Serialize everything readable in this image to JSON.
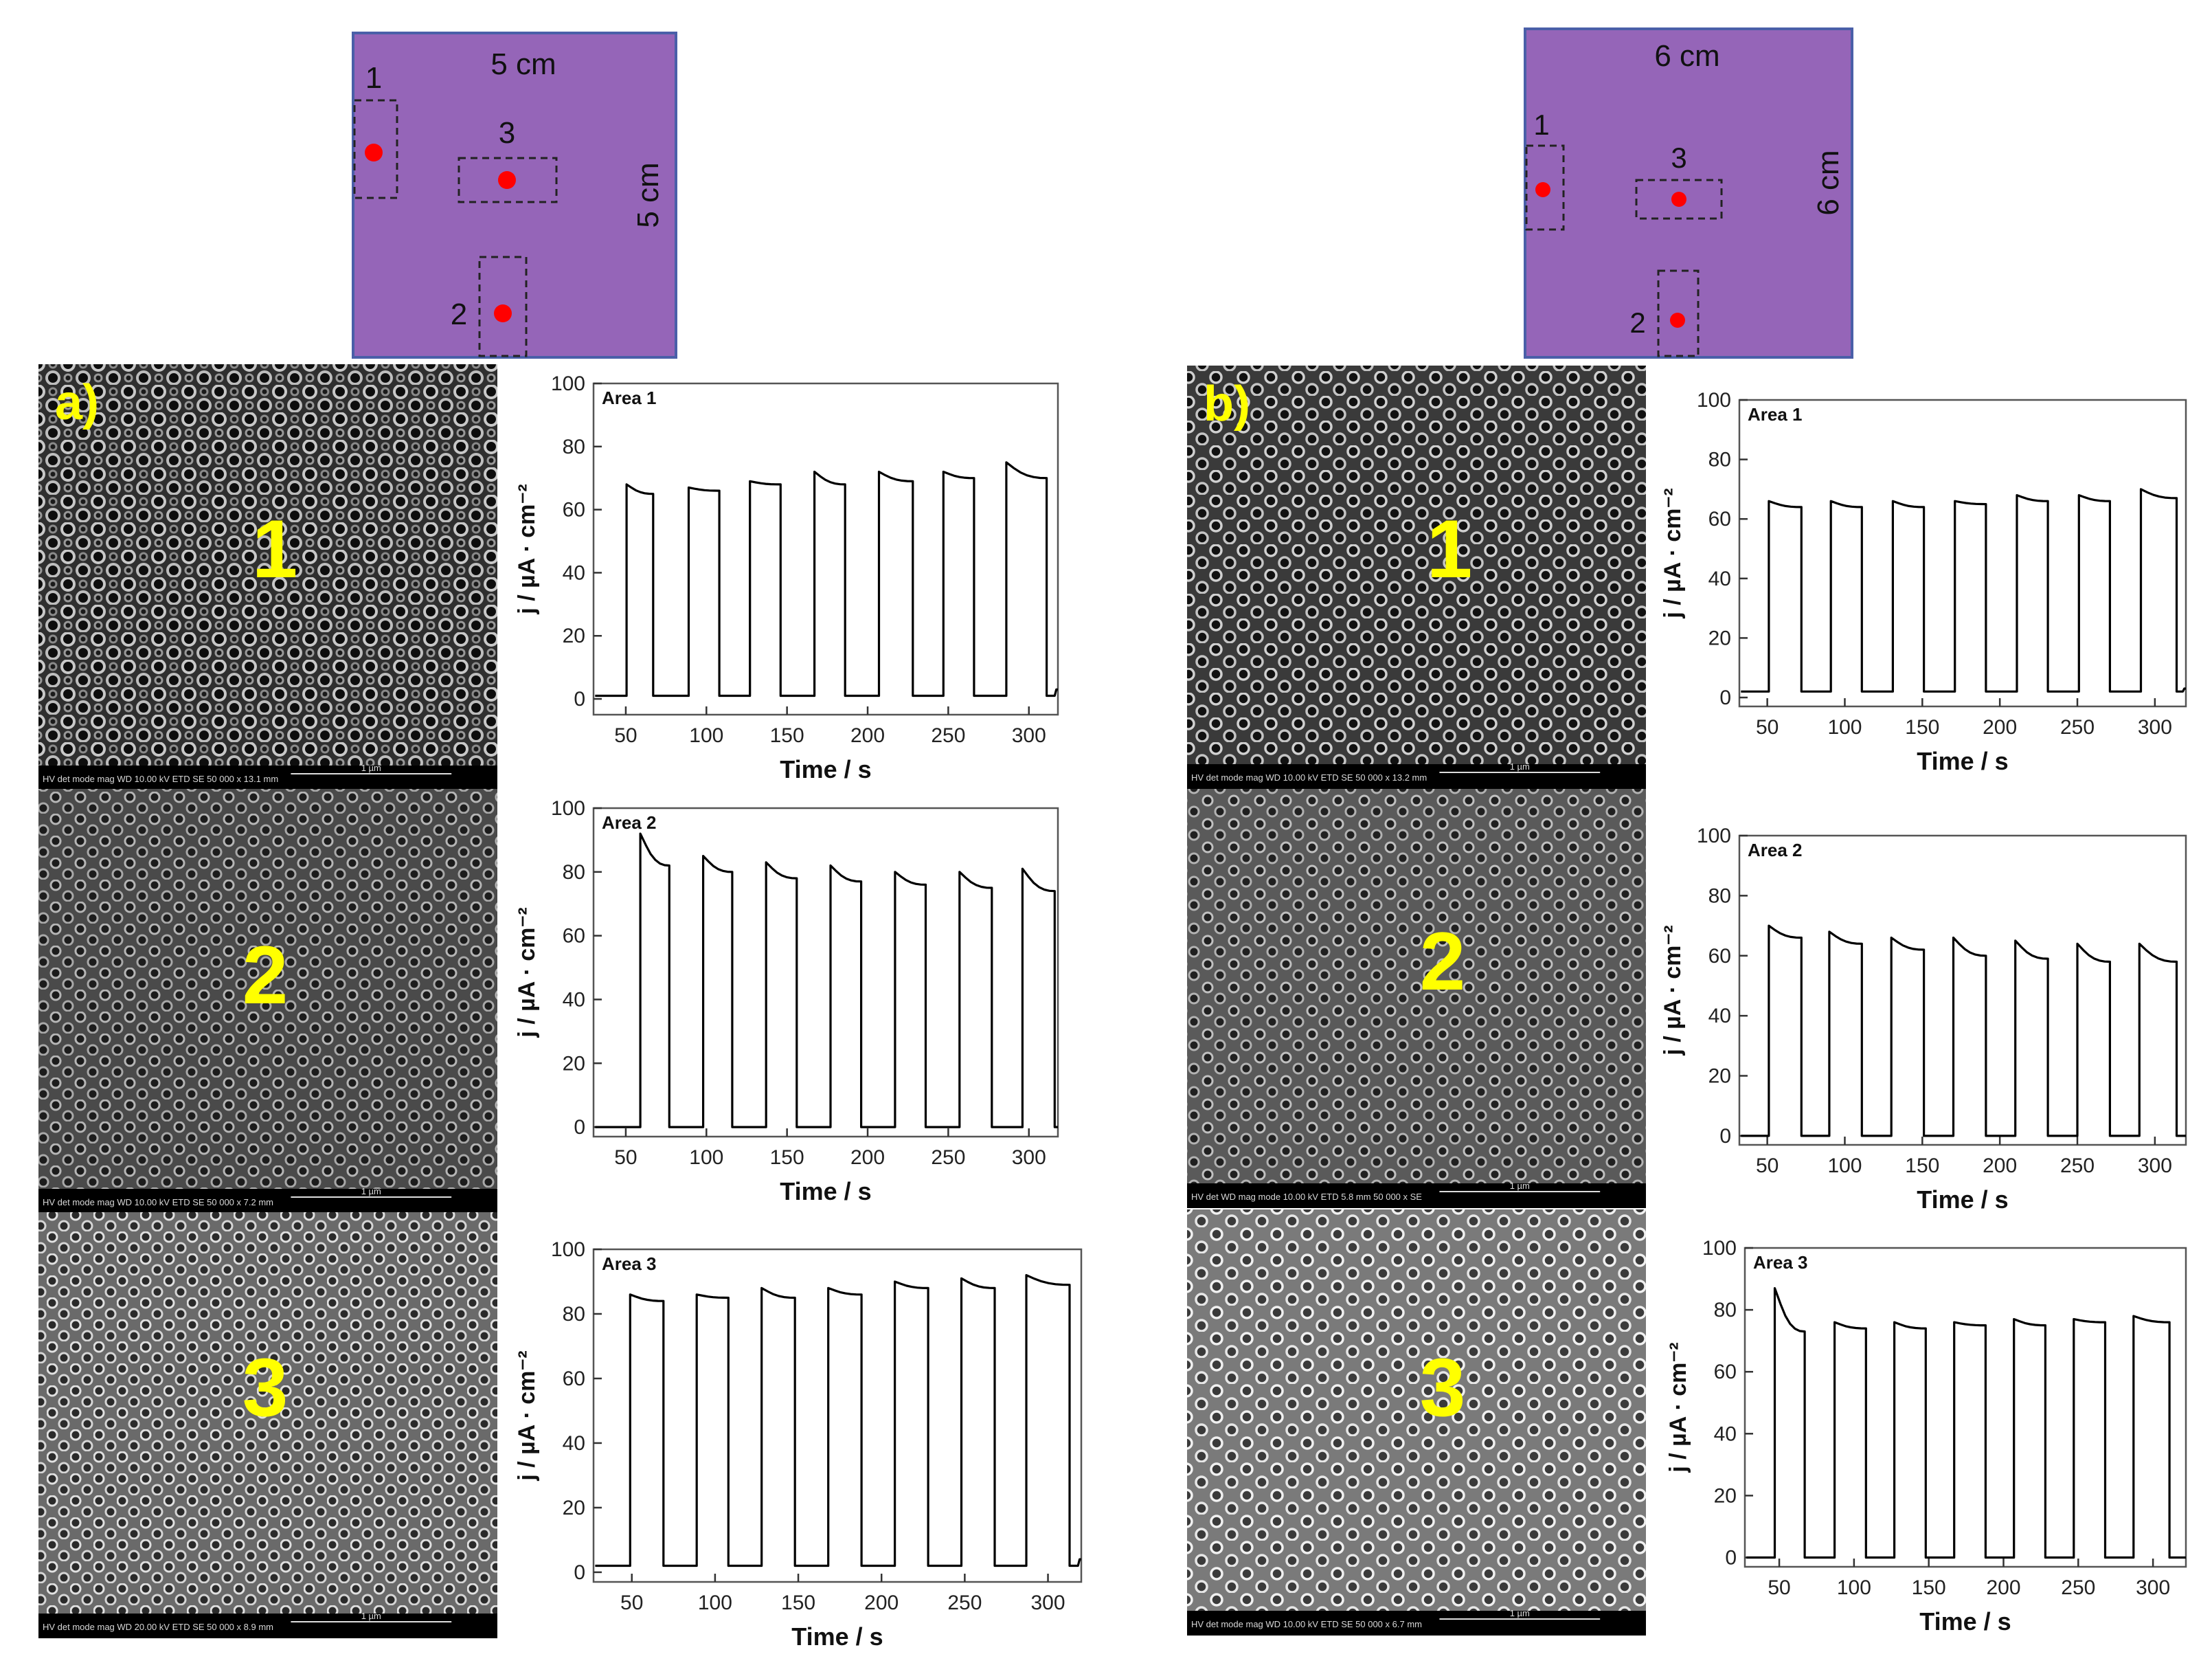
{
  "diagrams": [
    {
      "panel": "a",
      "width_label": "5 cm",
      "height_label": "5 cm",
      "area_labels": [
        "1",
        "2",
        "3"
      ]
    },
    {
      "panel": "b",
      "width_label": "6 cm",
      "height_label": "6 cm",
      "area_labels": [
        "1",
        "2",
        "3"
      ]
    }
  ],
  "sem_panels": [
    {
      "panel_label": "a)",
      "area_label": "1",
      "scale_label": "1 µm",
      "info_text": "HV det mode mag WD 10.00 kV ETD SE 50 000 x 13.1 mm"
    },
    {
      "panel_label": "",
      "area_label": "2",
      "scale_label": "1 µm",
      "info_text": "HV det mode mag WD 10.00 kV ETD SE 50 000 x 7.2 mm"
    },
    {
      "panel_label": "",
      "area_label": "3",
      "scale_label": "1 µm",
      "info_text": "HV det mode mag WD 20.00 kV ETD SE 50 000 x 8.9 mm"
    },
    {
      "panel_label": "b)",
      "area_label": "1",
      "scale_label": "1 µm",
      "info_text": "HV det mode mag WD 10.00 kV ETD SE 50 000 x 13.2 mm"
    },
    {
      "panel_label": "",
      "area_label": "2",
      "scale_label": "1 µm",
      "info_text": "HV det WD mag mode 10.00 kV ETD 5.8 mm 50 000 x SE"
    },
    {
      "panel_label": "",
      "area_label": "3",
      "scale_label": "1 µm",
      "info_text": "HV det mode mag WD 10.00 kV ETD SE 50 000 x 6.7 mm"
    }
  ],
  "colors": {
    "diagram_fill": "#9565b8",
    "diagram_border": "#4a5fa8",
    "marker": "#ff0000",
    "sem_label": "#ffff00",
    "trace": "#000000"
  },
  "chart_data": [
    {
      "type": "line",
      "panel": "a",
      "title": "Area 1",
      "xlabel": "Time / s",
      "ylabel": "j / µA · cm⁻²",
      "xlim": [
        30,
        318
      ],
      "ylim": [
        -5,
        100
      ],
      "xticks": [
        50,
        100,
        150,
        200,
        250,
        300
      ],
      "yticks": [
        0,
        20,
        40,
        60,
        80,
        100
      ],
      "dark_current": 1,
      "pulses": [
        {
          "on": 50.5,
          "off": 67,
          "start": 68,
          "end": 65
        },
        {
          "on": 89,
          "off": 108,
          "start": 67,
          "end": 66
        },
        {
          "on": 127,
          "off": 146,
          "start": 69,
          "end": 68
        },
        {
          "on": 167,
          "off": 186,
          "start": 72,
          "end": 68
        },
        {
          "on": 207,
          "off": 228,
          "start": 72,
          "end": 69
        },
        {
          "on": 247,
          "off": 266,
          "start": 72,
          "end": 70
        },
        {
          "on": 286,
          "off": 311,
          "start": 75,
          "end": 70
        }
      ],
      "end_x": 318,
      "end_y": 3
    },
    {
      "type": "line",
      "panel": "a",
      "title": "Area 2",
      "xlabel": "Time / s",
      "ylabel": "j / µA · cm⁻²",
      "xlim": [
        30,
        318
      ],
      "ylim": [
        -3,
        100
      ],
      "xticks": [
        50,
        100,
        150,
        200,
        250,
        300
      ],
      "yticks": [
        0,
        20,
        40,
        60,
        80,
        100
      ],
      "dark_current": 0,
      "pulses": [
        {
          "on": 59,
          "off": 77,
          "start": 92,
          "end": 82
        },
        {
          "on": 98,
          "off": 116,
          "start": 85,
          "end": 80
        },
        {
          "on": 137,
          "off": 156,
          "start": 83,
          "end": 78
        },
        {
          "on": 177,
          "off": 196,
          "start": 82,
          "end": 77
        },
        {
          "on": 217,
          "off": 236,
          "start": 80,
          "end": 76
        },
        {
          "on": 257,
          "off": 277,
          "start": 80,
          "end": 75
        },
        {
          "on": 296,
          "off": 316,
          "start": 81,
          "end": 74
        }
      ],
      "end_x": 318,
      "end_y": 0
    },
    {
      "type": "line",
      "panel": "a",
      "title": "Area 3",
      "xlabel": "Time / s",
      "ylabel": "j / µA · cm⁻²",
      "xlim": [
        27,
        320
      ],
      "ylim": [
        -3,
        100
      ],
      "xticks": [
        50,
        100,
        150,
        200,
        250,
        300
      ],
      "yticks": [
        0,
        20,
        40,
        60,
        80,
        100
      ],
      "dark_current": 2,
      "pulses": [
        {
          "on": 49,
          "off": 69,
          "start": 86,
          "end": 84
        },
        {
          "on": 89,
          "off": 108,
          "start": 86,
          "end": 85
        },
        {
          "on": 128,
          "off": 148,
          "start": 88,
          "end": 85
        },
        {
          "on": 168,
          "off": 188,
          "start": 88,
          "end": 86
        },
        {
          "on": 208,
          "off": 228,
          "start": 90,
          "end": 88
        },
        {
          "on": 248,
          "off": 268,
          "start": 91,
          "end": 88
        },
        {
          "on": 287,
          "off": 313,
          "start": 92,
          "end": 89
        }
      ],
      "end_x": 320,
      "end_y": 4
    },
    {
      "type": "line",
      "panel": "b",
      "title": "Area 1",
      "xlabel": "Time / s",
      "ylabel": "j / µA · cm⁻²",
      "xlim": [
        32,
        320
      ],
      "ylim": [
        -3,
        100
      ],
      "xticks": [
        50,
        100,
        150,
        200,
        250,
        300
      ],
      "yticks": [
        0,
        20,
        40,
        60,
        80,
        100
      ],
      "dark_current": 2,
      "pulses": [
        {
          "on": 51,
          "off": 72,
          "start": 66,
          "end": 64
        },
        {
          "on": 91,
          "off": 111,
          "start": 66,
          "end": 64
        },
        {
          "on": 131,
          "off": 151,
          "start": 66,
          "end": 64
        },
        {
          "on": 171,
          "off": 191,
          "start": 66,
          "end": 65
        },
        {
          "on": 211,
          "off": 231,
          "start": 68,
          "end": 66
        },
        {
          "on": 251,
          "off": 271,
          "start": 68,
          "end": 66
        },
        {
          "on": 291,
          "off": 314,
          "start": 70,
          "end": 67
        }
      ],
      "end_x": 320,
      "end_y": 3
    },
    {
      "type": "line",
      "panel": "b",
      "title": "Area 2",
      "xlabel": "Time / s",
      "ylabel": "j / µA · cm⁻²",
      "xlim": [
        32,
        320
      ],
      "ylim": [
        -3,
        100
      ],
      "xticks": [
        50,
        100,
        150,
        200,
        250,
        300
      ],
      "yticks": [
        0,
        20,
        40,
        60,
        80,
        100
      ],
      "dark_current": 0,
      "pulses": [
        {
          "on": 51,
          "off": 72,
          "start": 70,
          "end": 66
        },
        {
          "on": 90,
          "off": 111,
          "start": 68,
          "end": 64
        },
        {
          "on": 130,
          "off": 151,
          "start": 66,
          "end": 62
        },
        {
          "on": 170,
          "off": 191,
          "start": 66,
          "end": 60
        },
        {
          "on": 210,
          "off": 231,
          "start": 65,
          "end": 59
        },
        {
          "on": 250,
          "off": 271,
          "start": 64,
          "end": 58
        },
        {
          "on": 290,
          "off": 314,
          "start": 64,
          "end": 58
        }
      ],
      "end_x": 320,
      "end_y": 0
    },
    {
      "type": "line",
      "panel": "b",
      "title": "Area 3",
      "xlabel": "Time / s",
      "ylabel": "j / µA · cm⁻²",
      "xlim": [
        27,
        322
      ],
      "ylim": [
        -3,
        100
      ],
      "xticks": [
        50,
        100,
        150,
        200,
        250,
        300
      ],
      "yticks": [
        0,
        20,
        40,
        60,
        80,
        100
      ],
      "dark_current": 0,
      "pulses": [
        {
          "on": 47,
          "off": 67,
          "start": 87,
          "end": 73
        },
        {
          "on": 87,
          "off": 108,
          "start": 76,
          "end": 74
        },
        {
          "on": 127,
          "off": 148,
          "start": 76,
          "end": 74
        },
        {
          "on": 167,
          "off": 188,
          "start": 76,
          "end": 75
        },
        {
          "on": 207,
          "off": 228,
          "start": 77,
          "end": 75
        },
        {
          "on": 247,
          "off": 268,
          "start": 77,
          "end": 76
        },
        {
          "on": 287,
          "off": 311,
          "start": 78,
          "end": 76
        }
      ],
      "end_x": 322,
      "end_y": 0
    }
  ]
}
